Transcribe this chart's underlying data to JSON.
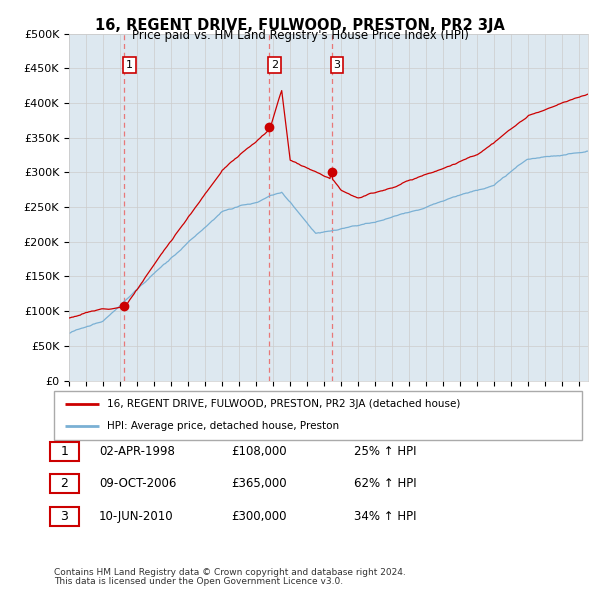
{
  "title": "16, REGENT DRIVE, FULWOOD, PRESTON, PR2 3JA",
  "subtitle": "Price paid vs. HM Land Registry's House Price Index (HPI)",
  "ylabel_ticks": [
    "£0",
    "£50K",
    "£100K",
    "£150K",
    "£200K",
    "£250K",
    "£300K",
    "£350K",
    "£400K",
    "£450K",
    "£500K"
  ],
  "ytick_values": [
    0,
    50000,
    100000,
    150000,
    200000,
    250000,
    300000,
    350000,
    400000,
    450000,
    500000
  ],
  "ylim": [
    0,
    500000
  ],
  "xlim_start": 1995.0,
  "xlim_end": 2025.5,
  "sale_dates": [
    1998.25,
    2006.77,
    2010.44
  ],
  "sale_prices": [
    108000,
    365000,
    300000
  ],
  "sale_labels": [
    "1",
    "2",
    "3"
  ],
  "legend_line1": "16, REGENT DRIVE, FULWOOD, PRESTON, PR2 3JA (detached house)",
  "legend_line2": "HPI: Average price, detached house, Preston",
  "table_rows": [
    [
      "1",
      "02-APR-1998",
      "£108,000",
      "25% ↑ HPI"
    ],
    [
      "2",
      "09-OCT-2006",
      "£365,000",
      "62% ↑ HPI"
    ],
    [
      "3",
      "10-JUN-2010",
      "£300,000",
      "34% ↑ HPI"
    ]
  ],
  "footnote1": "Contains HM Land Registry data © Crown copyright and database right 2024.",
  "footnote2": "This data is licensed under the Open Government Licence v3.0.",
  "red_color": "#cc0000",
  "blue_color": "#7ab0d4",
  "grid_color": "#cccccc",
  "dashed_color": "#e87878",
  "bg_chart": "#dde8f0",
  "background_color": "#ffffff"
}
